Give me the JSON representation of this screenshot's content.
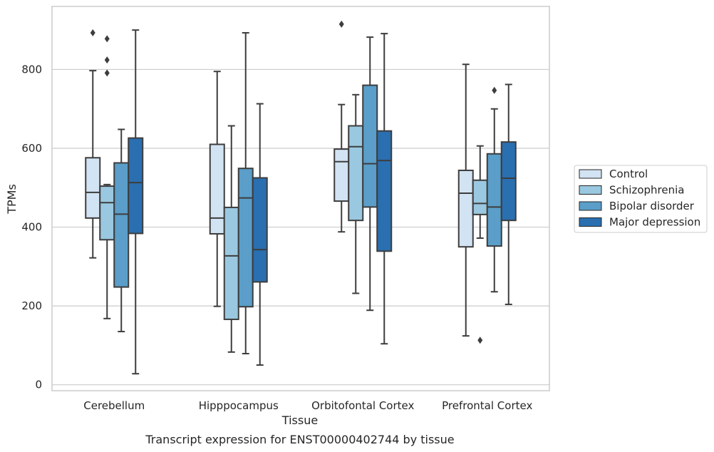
{
  "chart_data": {
    "type": "box",
    "xlabel": "Tissue",
    "ylabel": "TPMs",
    "caption": "Transcript expression for ENST00000402744 by tissue",
    "ylim": [
      -15,
      960
    ],
    "yticks": [
      0,
      200,
      400,
      600,
      800
    ],
    "grid": "horizontal",
    "legend_position": "outside-right",
    "categories": [
      "Cerebellum",
      "Hipppocampus",
      "Orbitofontal Cortex",
      "Prefrontal Cortex"
    ],
    "series": [
      {
        "name": "Control",
        "color": "#d2e3f3",
        "boxes": [
          {
            "whislo": 322,
            "q1": 423,
            "med": 488,
            "q3": 576,
            "whishi": 797,
            "fliers": [
              893
            ]
          },
          {
            "whislo": 199,
            "q1": 383,
            "med": 423,
            "q3": 610,
            "whishi": 795,
            "fliers": []
          },
          {
            "whislo": 388,
            "q1": 466,
            "med": 566,
            "q3": 598,
            "whishi": 711,
            "fliers": [
              915
            ]
          },
          {
            "whislo": 124,
            "q1": 350,
            "med": 486,
            "q3": 544,
            "whishi": 813,
            "fliers": []
          }
        ]
      },
      {
        "name": "Schizophrenia",
        "color": "#9ac8e0",
        "boxes": [
          {
            "whislo": 168,
            "q1": 368,
            "med": 462,
            "q3": 504,
            "whishi": 508,
            "fliers": [
              878,
              824,
              791
            ]
          },
          {
            "whislo": 83,
            "q1": 166,
            "med": 327,
            "q3": 450,
            "whishi": 657,
            "fliers": []
          },
          {
            "whislo": 232,
            "q1": 417,
            "med": 604,
            "q3": 657,
            "whishi": 736,
            "fliers": []
          },
          {
            "whislo": 372,
            "q1": 432,
            "med": 460,
            "q3": 519,
            "whishi": 606,
            "fliers": [
              113
            ]
          }
        ]
      },
      {
        "name": "Bipolar disorder",
        "color": "#5a9ec9",
        "boxes": [
          {
            "whislo": 135,
            "q1": 248,
            "med": 433,
            "q3": 563,
            "whishi": 648,
            "fliers": []
          },
          {
            "whislo": 79,
            "q1": 198,
            "med": 474,
            "q3": 549,
            "whishi": 893,
            "fliers": []
          },
          {
            "whislo": 189,
            "q1": 451,
            "med": 561,
            "q3": 760,
            "whishi": 882,
            "fliers": []
          },
          {
            "whislo": 236,
            "q1": 352,
            "med": 451,
            "q3": 586,
            "whishi": 700,
            "fliers": [
              747
            ]
          }
        ]
      },
      {
        "name": "Major depression",
        "color": "#2a6fb0",
        "boxes": [
          {
            "whislo": 28,
            "q1": 384,
            "med": 513,
            "q3": 626,
            "whishi": 900,
            "fliers": []
          },
          {
            "whislo": 50,
            "q1": 261,
            "med": 343,
            "q3": 525,
            "whishi": 713,
            "fliers": []
          },
          {
            "whislo": 104,
            "q1": 339,
            "med": 569,
            "q3": 644,
            "whishi": 891,
            "fliers": []
          },
          {
            "whislo": 204,
            "q1": 417,
            "med": 524,
            "q3": 616,
            "whishi": 762,
            "fliers": []
          }
        ]
      }
    ]
  }
}
